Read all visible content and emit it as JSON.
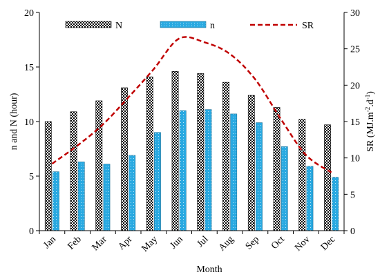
{
  "chart_data": {
    "type": "bar",
    "categories": [
      "Jan",
      "Feb",
      "Mar",
      "Apr",
      "May",
      "Jun",
      "Jul",
      "Aug",
      "Sep",
      "Oct",
      "Nov",
      "Dec"
    ],
    "series": [
      {
        "name": "N",
        "axis": "left",
        "style": "bar",
        "pattern": "checkered black-white",
        "values": [
          10.0,
          10.9,
          11.9,
          13.1,
          14.1,
          14.6,
          14.4,
          13.6,
          12.4,
          11.3,
          10.2,
          9.7
        ]
      },
      {
        "name": "n",
        "axis": "left",
        "style": "bar",
        "color": "#29a9e1",
        "values": [
          5.4,
          6.3,
          6.1,
          6.9,
          9.0,
          11.0,
          11.1,
          10.7,
          9.9,
          7.7,
          5.9,
          4.9
        ]
      },
      {
        "name": "SR",
        "axis": "right",
        "style": "dashed-line",
        "color": "#c00000",
        "values": [
          9.2,
          11.7,
          14.6,
          18.3,
          22.2,
          26.4,
          25.9,
          24.3,
          20.8,
          15.4,
          10.4,
          8.0
        ]
      }
    ],
    "xlabel": "Month",
    "ylabel": "n and N (hour)",
    "y2label_main": "SR (MJ.m",
    "y2label_sup1": "-2",
    "y2label_mid": ".d",
    "y2label_sup2": "-1",
    "y2label_end": ")",
    "ylim": [
      0,
      20
    ],
    "yticks": [
      "0",
      "5",
      "10",
      "15",
      "20"
    ],
    "y2lim": [
      0,
      30
    ],
    "y2ticks": [
      "0",
      "5",
      "10",
      "15",
      "20",
      "25",
      "30"
    ],
    "legend_position": "top",
    "grid": false
  }
}
